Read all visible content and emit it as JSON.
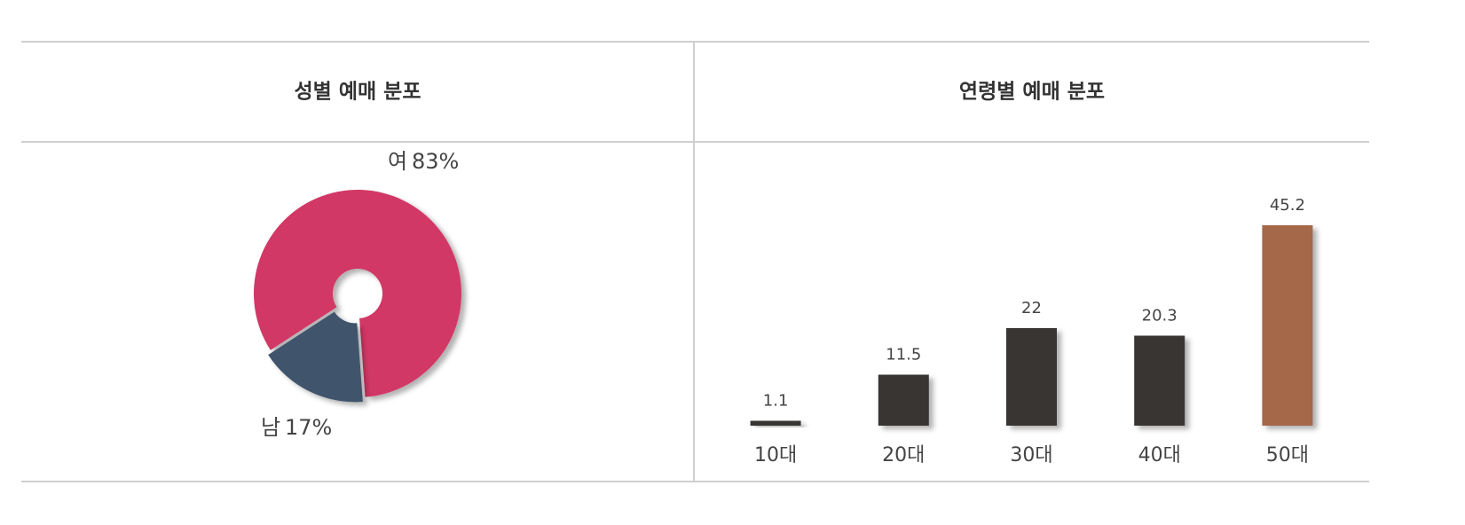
{
  "chart_data": [
    {
      "type": "pie",
      "title": "성별 예매 분포",
      "categories": [
        "여",
        "남"
      ],
      "values": [
        83,
        17
      ],
      "value_labels": [
        "83%",
        "17%"
      ],
      "colors": [
        "#d13866",
        "#41546c"
      ]
    },
    {
      "type": "bar",
      "title": "연령별 예매 분포",
      "categories": [
        "10대",
        "20대",
        "30대",
        "40대",
        "50대"
      ],
      "values": [
        1.1,
        11.5,
        22,
        20.3,
        45.2
      ],
      "colors": [
        "#383432",
        "#383432",
        "#383432",
        "#383432",
        "#a5674a"
      ]
    }
  ]
}
